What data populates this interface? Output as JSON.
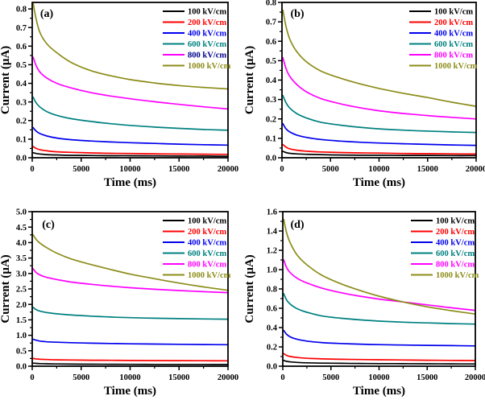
{
  "figure": {
    "background": "#ffffff",
    "axis_color": "#000000",
    "xlabel": "Time (ms)",
    "ylabel": "Current (μA)",
    "legend_labels": [
      "100 kV/cm",
      "200 kV/cm",
      "400 kV/cm",
      "600 kV/cm",
      "800 kV/cm",
      "1000 kV/cm"
    ],
    "series_colors": [
      "#000000",
      "#ff0000",
      "#0000ee",
      "#008080",
      "#ff00ff",
      "#8c8c1a"
    ]
  },
  "chart_data": [
    {
      "id": "a",
      "type": "line",
      "panel_label": "(a)",
      "xlabel": "Time (ms)",
      "ylabel": "Current (μA)",
      "xlim": [
        0,
        20000
      ],
      "xticks": [
        0,
        5000,
        10000,
        15000,
        20000
      ],
      "x_minor_ticks": [
        2500,
        7500,
        12500,
        17500
      ],
      "ylim": [
        0,
        0.835
      ],
      "yticks": [
        0.0,
        0.1,
        0.2,
        0.3,
        0.4,
        0.5,
        0.6,
        0.7,
        0.8
      ],
      "ytick_decimals": 1,
      "legend_position": "top-right",
      "grid": false,
      "x": [
        100,
        400,
        800,
        1500,
        2500,
        4000,
        6000,
        8000,
        10000,
        12500,
        15000,
        17500,
        20000
      ],
      "series": [
        {
          "name": "100 kV/cm",
          "color": "#000000",
          "label_color": "#000000",
          "values": [
            0.027,
            0.023,
            0.02,
            0.017,
            0.015,
            0.013,
            0.012,
            0.011,
            0.011,
            0.01,
            0.009,
            0.009,
            0.008
          ]
        },
        {
          "name": "200 kV/cm",
          "color": "#ff0000",
          "label_color": "#ff0000",
          "values": [
            0.06,
            0.05,
            0.043,
            0.037,
            0.032,
            0.029,
            0.026,
            0.024,
            0.023,
            0.021,
            0.02,
            0.019,
            0.018
          ]
        },
        {
          "name": "400 kV/cm",
          "color": "#0000ee",
          "label_color": "#0000ee",
          "values": [
            0.162,
            0.143,
            0.13,
            0.117,
            0.106,
            0.097,
            0.09,
            0.085,
            0.081,
            0.077,
            0.073,
            0.07,
            0.068
          ]
        },
        {
          "name": "600 kV/cm",
          "color": "#008080",
          "label_color": "#008080",
          "values": [
            0.325,
            0.295,
            0.272,
            0.248,
            0.228,
            0.21,
            0.195,
            0.183,
            0.174,
            0.165,
            0.158,
            0.152,
            0.148
          ]
        },
        {
          "name": "800 kV/cm",
          "color": "#ff00ff",
          "label_color": "#00008b",
          "values": [
            0.54,
            0.495,
            0.46,
            0.428,
            0.4,
            0.375,
            0.35,
            0.332,
            0.317,
            0.301,
            0.287,
            0.274,
            0.262
          ]
        },
        {
          "name": "1000 kV/cm",
          "color": "#8c8c1a",
          "label_color": "#8c8c1a",
          "values": [
            0.83,
            0.745,
            0.672,
            0.612,
            0.565,
            0.512,
            0.468,
            0.441,
            0.42,
            0.402,
            0.388,
            0.378,
            0.37
          ]
        }
      ]
    },
    {
      "id": "b",
      "type": "line",
      "panel_label": "(b)",
      "xlabel": "Time (ms)",
      "ylabel": "Current (μA)",
      "xlim": [
        0,
        20000
      ],
      "xticks": [
        0,
        5000,
        10000,
        15000,
        20000
      ],
      "x_minor_ticks": [
        2500,
        7500,
        12500,
        17500
      ],
      "ylim": [
        0,
        0.8
      ],
      "yticks": [
        0.0,
        0.1,
        0.2,
        0.3,
        0.4,
        0.5,
        0.6,
        0.7,
        0.8
      ],
      "ytick_decimals": 1,
      "legend_position": "top-right",
      "grid": false,
      "x": [
        100,
        400,
        800,
        1500,
        2500,
        4000,
        6000,
        8000,
        10000,
        12500,
        15000,
        17500,
        20000
      ],
      "series": [
        {
          "name": "100 kV/cm",
          "color": "#000000",
          "label_color": "#000000",
          "values": [
            0.033,
            0.027,
            0.023,
            0.02,
            0.018,
            0.016,
            0.014,
            0.013,
            0.013,
            0.012,
            0.012,
            0.011,
            0.011
          ]
        },
        {
          "name": "200 kV/cm",
          "color": "#ff0000",
          "label_color": "#ff0000",
          "values": [
            0.068,
            0.055,
            0.046,
            0.039,
            0.034,
            0.03,
            0.027,
            0.025,
            0.024,
            0.022,
            0.021,
            0.02,
            0.019
          ]
        },
        {
          "name": "400 kV/cm",
          "color": "#0000ee",
          "label_color": "#0000ee",
          "values": [
            0.175,
            0.15,
            0.133,
            0.117,
            0.105,
            0.094,
            0.086,
            0.08,
            0.076,
            0.072,
            0.069,
            0.066,
            0.064
          ]
        },
        {
          "name": "600 kV/cm",
          "color": "#008080",
          "label_color": "#008080",
          "values": [
            0.32,
            0.285,
            0.256,
            0.228,
            0.205,
            0.183,
            0.168,
            0.157,
            0.149,
            0.142,
            0.137,
            0.133,
            0.13
          ]
        },
        {
          "name": "800 kV/cm",
          "color": "#ff00ff",
          "label_color": "#ff00ff",
          "values": [
            0.515,
            0.462,
            0.42,
            0.378,
            0.34,
            0.305,
            0.278,
            0.258,
            0.242,
            0.228,
            0.217,
            0.208,
            0.2
          ]
        },
        {
          "name": "1000 kV/cm",
          "color": "#8c8c1a",
          "label_color": "#8c8c1a",
          "values": [
            0.76,
            0.68,
            0.612,
            0.548,
            0.495,
            0.447,
            0.41,
            0.381,
            0.357,
            0.332,
            0.31,
            0.286,
            0.265
          ]
        }
      ]
    },
    {
      "id": "c",
      "type": "line",
      "panel_label": "(c)",
      "xlabel": "Time (ms)",
      "ylabel": "Current (μA)",
      "xlim": [
        0,
        20000
      ],
      "xticks": [
        0,
        5000,
        10000,
        15000,
        20000
      ],
      "x_minor_ticks": [
        2500,
        7500,
        12500,
        17500
      ],
      "ylim": [
        0,
        5.0
      ],
      "yticks": [
        0.0,
        0.5,
        1.0,
        1.5,
        2.0,
        2.5,
        3.0,
        3.5,
        4.0,
        4.5,
        5.0
      ],
      "ytick_decimals": 1,
      "legend_position": "top-right",
      "grid": false,
      "x": [
        100,
        400,
        800,
        1500,
        2500,
        4000,
        6000,
        8000,
        10000,
        12500,
        15000,
        17500,
        20000
      ],
      "series": [
        {
          "name": "100 kV/cm",
          "color": "#000000",
          "label_color": "#000000",
          "values": [
            0.1,
            0.09,
            0.083,
            0.077,
            0.072,
            0.068,
            0.064,
            0.062,
            0.06,
            0.058,
            0.057,
            0.056,
            0.055
          ]
        },
        {
          "name": "200 kV/cm",
          "color": "#ff0000",
          "label_color": "#ff0000",
          "values": [
            0.25,
            0.235,
            0.225,
            0.215,
            0.207,
            0.2,
            0.194,
            0.19,
            0.186,
            0.182,
            0.179,
            0.177,
            0.175
          ]
        },
        {
          "name": "400 kV/cm",
          "color": "#0000ee",
          "label_color": "#0000ee",
          "values": [
            0.87,
            0.84,
            0.812,
            0.79,
            0.775,
            0.76,
            0.746,
            0.735,
            0.725,
            0.716,
            0.708,
            0.701,
            0.695
          ]
        },
        {
          "name": "600 kV/cm",
          "color": "#008080",
          "label_color": "#008080",
          "values": [
            1.9,
            1.83,
            1.78,
            1.735,
            1.695,
            1.655,
            1.62,
            1.592,
            1.57,
            1.552,
            1.538,
            1.528,
            1.52
          ]
        },
        {
          "name": "800 kV/cm",
          "color": "#ff00ff",
          "label_color": "#ff00ff",
          "values": [
            3.15,
            3.03,
            2.95,
            2.872,
            2.805,
            2.722,
            2.65,
            2.592,
            2.54,
            2.49,
            2.448,
            2.412,
            2.38
          ]
        },
        {
          "name": "1000 kV/cm",
          "color": "#8c8c1a",
          "label_color": "#8c8c1a",
          "values": [
            4.25,
            4.1,
            3.98,
            3.83,
            3.66,
            3.47,
            3.29,
            3.13,
            2.98,
            2.83,
            2.69,
            2.565,
            2.455
          ]
        }
      ]
    },
    {
      "id": "d",
      "type": "line",
      "panel_label": "(d)",
      "xlabel": "Time (ms)",
      "ylabel": "Current (μA)",
      "xlim": [
        0,
        20000
      ],
      "xticks": [
        0,
        5000,
        10000,
        15000,
        20000
      ],
      "x_minor_ticks": [
        2500,
        7500,
        12500,
        17500
      ],
      "ylim": [
        0,
        1.6
      ],
      "yticks": [
        0.0,
        0.2,
        0.4,
        0.6,
        0.8,
        1.0,
        1.2,
        1.4,
        1.6
      ],
      "ytick_decimals": 1,
      "legend_position": "top-right",
      "grid": false,
      "x": [
        100,
        400,
        800,
        1500,
        2500,
        4000,
        6000,
        8000,
        10000,
        12500,
        15000,
        17500,
        20000
      ],
      "series": [
        {
          "name": "100 kV/cm",
          "color": "#000000",
          "label_color": "#000000",
          "values": [
            0.06,
            0.05,
            0.044,
            0.039,
            0.035,
            0.032,
            0.03,
            0.028,
            0.027,
            0.026,
            0.025,
            0.024,
            0.023
          ]
        },
        {
          "name": "200 kV/cm",
          "color": "#ff0000",
          "label_color": "#ff0000",
          "values": [
            0.13,
            0.112,
            0.1,
            0.09,
            0.082,
            0.076,
            0.072,
            0.069,
            0.067,
            0.064,
            0.062,
            0.06,
            0.058
          ]
        },
        {
          "name": "400 kV/cm",
          "color": "#0000ee",
          "label_color": "#0000ee",
          "values": [
            0.37,
            0.33,
            0.302,
            0.278,
            0.26,
            0.245,
            0.235,
            0.228,
            0.223,
            0.219,
            0.216,
            0.213,
            0.21
          ]
        },
        {
          "name": "600 kV/cm",
          "color": "#008080",
          "label_color": "#008080",
          "values": [
            0.75,
            0.685,
            0.64,
            0.595,
            0.558,
            0.522,
            0.497,
            0.48,
            0.467,
            0.456,
            0.448,
            0.441,
            0.436
          ]
        },
        {
          "name": "800 kV/cm",
          "color": "#ff00ff",
          "label_color": "#ff00ff",
          "values": [
            1.1,
            1.02,
            0.965,
            0.91,
            0.862,
            0.81,
            0.762,
            0.725,
            0.695,
            0.665,
            0.635,
            0.605,
            0.578
          ]
        },
        {
          "name": "1000 kV/cm",
          "color": "#8c8c1a",
          "label_color": "#8c8c1a",
          "values": [
            1.52,
            1.38,
            1.27,
            1.15,
            1.05,
            0.945,
            0.855,
            0.785,
            0.725,
            0.665,
            0.615,
            0.575,
            0.54
          ]
        }
      ]
    }
  ]
}
